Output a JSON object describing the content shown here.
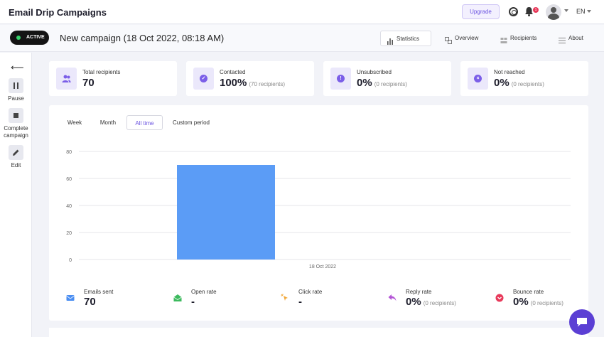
{
  "app": {
    "title": "Email Drip Campaigns"
  },
  "topbar": {
    "upgrade_label": "Upgrade",
    "notification_count": "1",
    "language": "EN"
  },
  "campaign": {
    "status": "ACTIVE",
    "title": "New campaign (18 Oct 2022, 08:18 AM)",
    "tabs": [
      {
        "label": "Statistics",
        "icon": "bar-chart-icon",
        "active": true
      },
      {
        "label": "Overview",
        "icon": "overview-icon",
        "active": false
      },
      {
        "label": "Recipients",
        "icon": "recipients-icon",
        "active": false
      },
      {
        "label": "About",
        "icon": "list-icon",
        "active": false
      }
    ]
  },
  "sidebar": {
    "back_icon": "arrow-left-icon",
    "actions": [
      {
        "label": "Pause",
        "icon": "pause-icon"
      },
      {
        "label": "Complete campaign",
        "icon": "stop-icon"
      },
      {
        "label": "Edit",
        "icon": "pencil-icon"
      }
    ]
  },
  "stats": [
    {
      "label": "Total recipients",
      "value": "70",
      "sub": "",
      "icon": "users-icon"
    },
    {
      "label": "Contacted",
      "value": "100%",
      "sub": "(70 recipients)",
      "icon": "check-icon"
    },
    {
      "label": "Unsubscribed",
      "value": "0%",
      "sub": "(0 recipients)",
      "icon": "exclamation-icon"
    },
    {
      "label": "Not reached",
      "value": "0%",
      "sub": "(0 recipients)",
      "icon": "x-icon"
    }
  ],
  "periods": [
    {
      "label": "Week",
      "active": false
    },
    {
      "label": "Month",
      "active": false
    },
    {
      "label": "All time",
      "active": true
    },
    {
      "label": "Custom period",
      "active": false
    }
  ],
  "chart_data": {
    "type": "bar",
    "categories": [
      "18 Oct 2022"
    ],
    "values": [
      70
    ],
    "ylim": [
      0,
      80
    ],
    "yticks": [
      0,
      20,
      40,
      60,
      80
    ],
    "grid": true,
    "bar_color": "#5b9cf6"
  },
  "metrics": [
    {
      "label": "Emails sent",
      "value": "70",
      "sub": "",
      "icon": "envelope-icon",
      "bg": "#e3edfd",
      "fg": "#4a8ef2"
    },
    {
      "label": "Open rate",
      "value": "-",
      "sub": "",
      "icon": "open-envelope-icon",
      "bg": "#e2f5e6",
      "fg": "#3cba5e"
    },
    {
      "label": "Click rate",
      "value": "-",
      "sub": "",
      "icon": "cursor-click-icon",
      "bg": "#fdf1df",
      "fg": "#f2a737"
    },
    {
      "label": "Reply rate",
      "value": "0%",
      "sub": "(0 recipients)",
      "icon": "reply-icon",
      "bg": "#f6e6fa",
      "fg": "#b455d6"
    },
    {
      "label": "Bounce rate",
      "value": "0%",
      "sub": "(0 recipients)",
      "icon": "bounce-icon",
      "bg": "#fde3e3",
      "fg": "#e8395a"
    }
  ],
  "colors": {
    "accent": "#6a52e0",
    "active_dot": "#35d36a",
    "chat": "#5b3fd4"
  }
}
